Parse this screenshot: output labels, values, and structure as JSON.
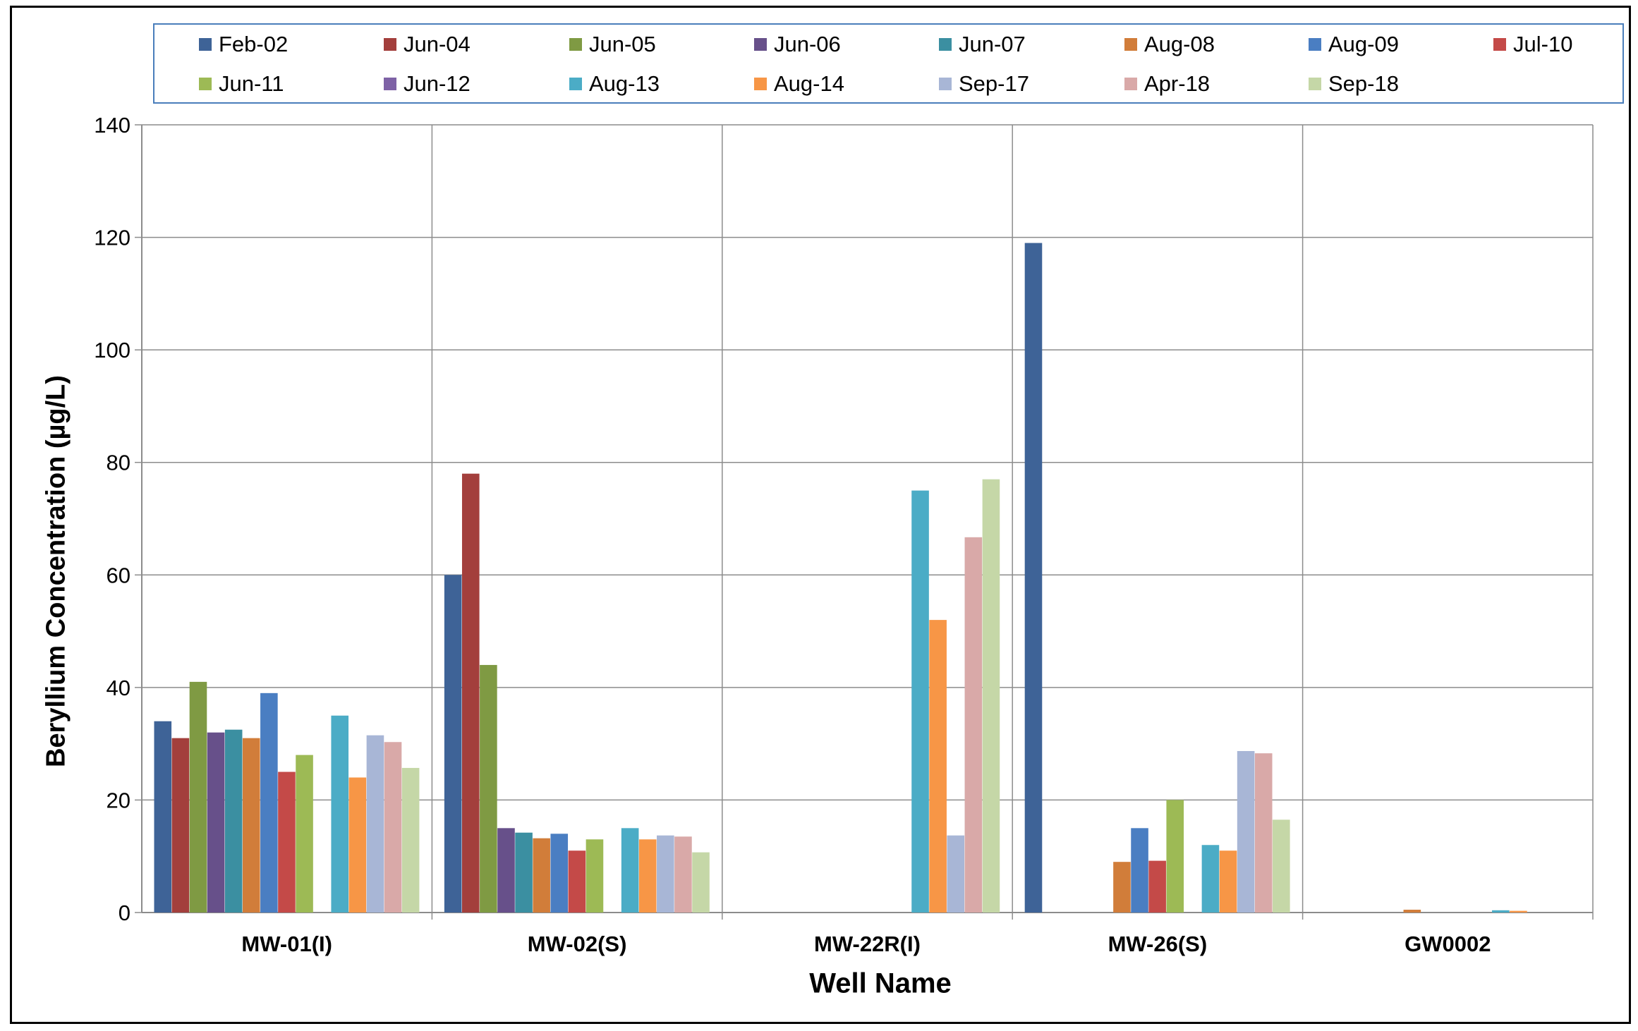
{
  "chart_data": {
    "type": "bar",
    "title": "",
    "xlabel": "Well Name",
    "ylabel": "Beryllium Concentration (µg/L)",
    "ylim": [
      0,
      140
    ],
    "yticks": [
      0,
      20,
      40,
      60,
      80,
      100,
      120,
      140
    ],
    "grid": true,
    "legend_position": "top",
    "categories": [
      "MW-01(I)",
      "MW-02(S)",
      "MW-22R(I)",
      "MW-26(S)",
      "GW0002"
    ],
    "series": [
      {
        "name": "Feb-02",
        "color": "#3e6397",
        "values": [
          34,
          60,
          null,
          119,
          null
        ]
      },
      {
        "name": "Jun-04",
        "color": "#a33f3c",
        "values": [
          31,
          78,
          null,
          null,
          null
        ]
      },
      {
        "name": "Jun-05",
        "color": "#7f9a43",
        "values": [
          41,
          44,
          null,
          null,
          null
        ]
      },
      {
        "name": "Jun-06",
        "color": "#67508a",
        "values": [
          32,
          15,
          null,
          null,
          null
        ]
      },
      {
        "name": "Jun-07",
        "color": "#3b8fa1",
        "values": [
          32.5,
          14.2,
          null,
          null,
          null
        ]
      },
      {
        "name": "Aug-08",
        "color": "#d17d3a",
        "values": [
          31,
          13.2,
          null,
          9,
          0.5
        ]
      },
      {
        "name": "Aug-09",
        "color": "#4a7ec2",
        "values": [
          39,
          14,
          null,
          15,
          null
        ]
      },
      {
        "name": "Jul-10",
        "color": "#c44a48",
        "values": [
          25,
          11,
          null,
          9.2,
          null
        ]
      },
      {
        "name": "Jun-11",
        "color": "#9dba55",
        "values": [
          28,
          13,
          null,
          20,
          null
        ]
      },
      {
        "name": "Jun-12",
        "color": "#7e62a6",
        "values": [
          null,
          null,
          null,
          null,
          null
        ]
      },
      {
        "name": "Aug-13",
        "color": "#4bacc6",
        "values": [
          35,
          15,
          75,
          12,
          0.4
        ]
      },
      {
        "name": "Aug-14",
        "color": "#f79646",
        "values": [
          24,
          13,
          52,
          11,
          0.3
        ]
      },
      {
        "name": "Sep-17",
        "color": "#a8b6d6",
        "values": [
          31.5,
          13.7,
          13.7,
          28.7,
          null
        ]
      },
      {
        "name": "Apr-18",
        "color": "#d9a9a8",
        "values": [
          30.3,
          13.5,
          66.7,
          28.3,
          null
        ]
      },
      {
        "name": "Sep-18",
        "color": "#c5d7a7",
        "values": [
          25.7,
          10.7,
          77,
          16.5,
          null
        ]
      }
    ]
  }
}
